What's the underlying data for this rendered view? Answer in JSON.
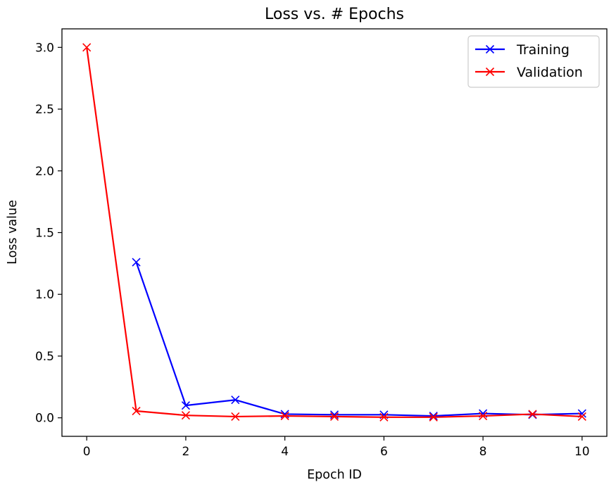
{
  "chart_data": {
    "type": "line",
    "title": "Loss vs. # Epochs",
    "xlabel": "Epoch ID",
    "ylabel": "Loss value",
    "xlim": [
      -0.5,
      10.5
    ],
    "ylim": [
      -0.15,
      3.15
    ],
    "x_ticks": [
      0,
      2,
      4,
      6,
      8,
      10
    ],
    "y_ticks": [
      0.0,
      0.5,
      1.0,
      1.5,
      2.0,
      2.5,
      3.0
    ],
    "x_tick_labels": [
      "0",
      "2",
      "4",
      "6",
      "8",
      "10"
    ],
    "y_tick_labels": [
      "0.0",
      "0.5",
      "1.0",
      "1.5",
      "2.0",
      "2.5",
      "3.0"
    ],
    "grid": false,
    "legend_position": "top-right",
    "marker": "x",
    "series": [
      {
        "name": "Training",
        "color": "#0000ff",
        "x": [
          1,
          2,
          3,
          4,
          5,
          6,
          7,
          8,
          9,
          10
        ],
        "y": [
          1.26,
          0.1,
          0.145,
          0.03,
          0.025,
          0.025,
          0.015,
          0.035,
          0.025,
          0.035
        ]
      },
      {
        "name": "Validation",
        "color": "#ff0000",
        "x": [
          0,
          1,
          2,
          3,
          4,
          5,
          6,
          7,
          8,
          9,
          10
        ],
        "y": [
          3.0,
          0.055,
          0.02,
          0.01,
          0.015,
          0.01,
          0.005,
          0.005,
          0.015,
          0.03,
          0.01
        ]
      }
    ]
  }
}
